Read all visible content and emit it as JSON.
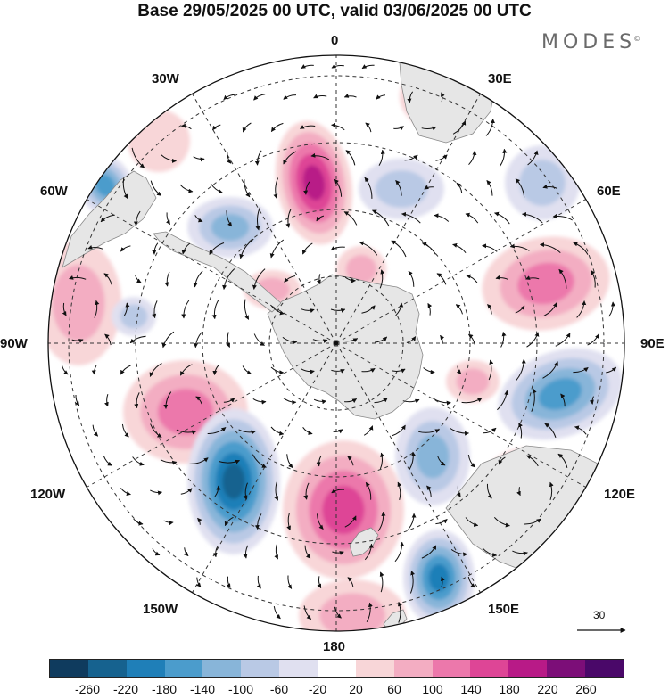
{
  "header": {
    "title": "Base 29/05/2025 00 UTC, valid 03/06/2025 00 UTC",
    "brand": "MODES",
    "brand_mark": "©"
  },
  "map": {
    "projection": "south-polar-stereographic",
    "longitude_labels": {
      "lon_0": "0",
      "lon_30e": "30E",
      "lon_60e": "60E",
      "lon_90e": "90E",
      "lon_120e": "120E",
      "lon_150e": "150E",
      "lon_180": "180",
      "lon_150w": "150W",
      "lon_120w": "120W",
      "lon_90w": "90W",
      "lon_60w": "60W",
      "lon_30w": "30W"
    },
    "graticule": "dashed",
    "land_color": "#e6e6e6",
    "reference_vector": {
      "label": "30"
    }
  },
  "colorbar": {
    "colors": [
      "#0f3b5e",
      "#16628f",
      "#1f7fb8",
      "#4b9ccc",
      "#88b5d9",
      "#b9c9e5",
      "#e0e0f0",
      "#ffffff",
      "#f8d6d8",
      "#f3adc2",
      "#ec78ab",
      "#de4596",
      "#b81a87",
      "#7c0e78",
      "#4a0869"
    ],
    "ticks": [
      "-260",
      "-220",
      "-180",
      "-140",
      "-100",
      "-60",
      "-20",
      "20",
      "60",
      "100",
      "140",
      "180",
      "220",
      "260"
    ]
  }
}
